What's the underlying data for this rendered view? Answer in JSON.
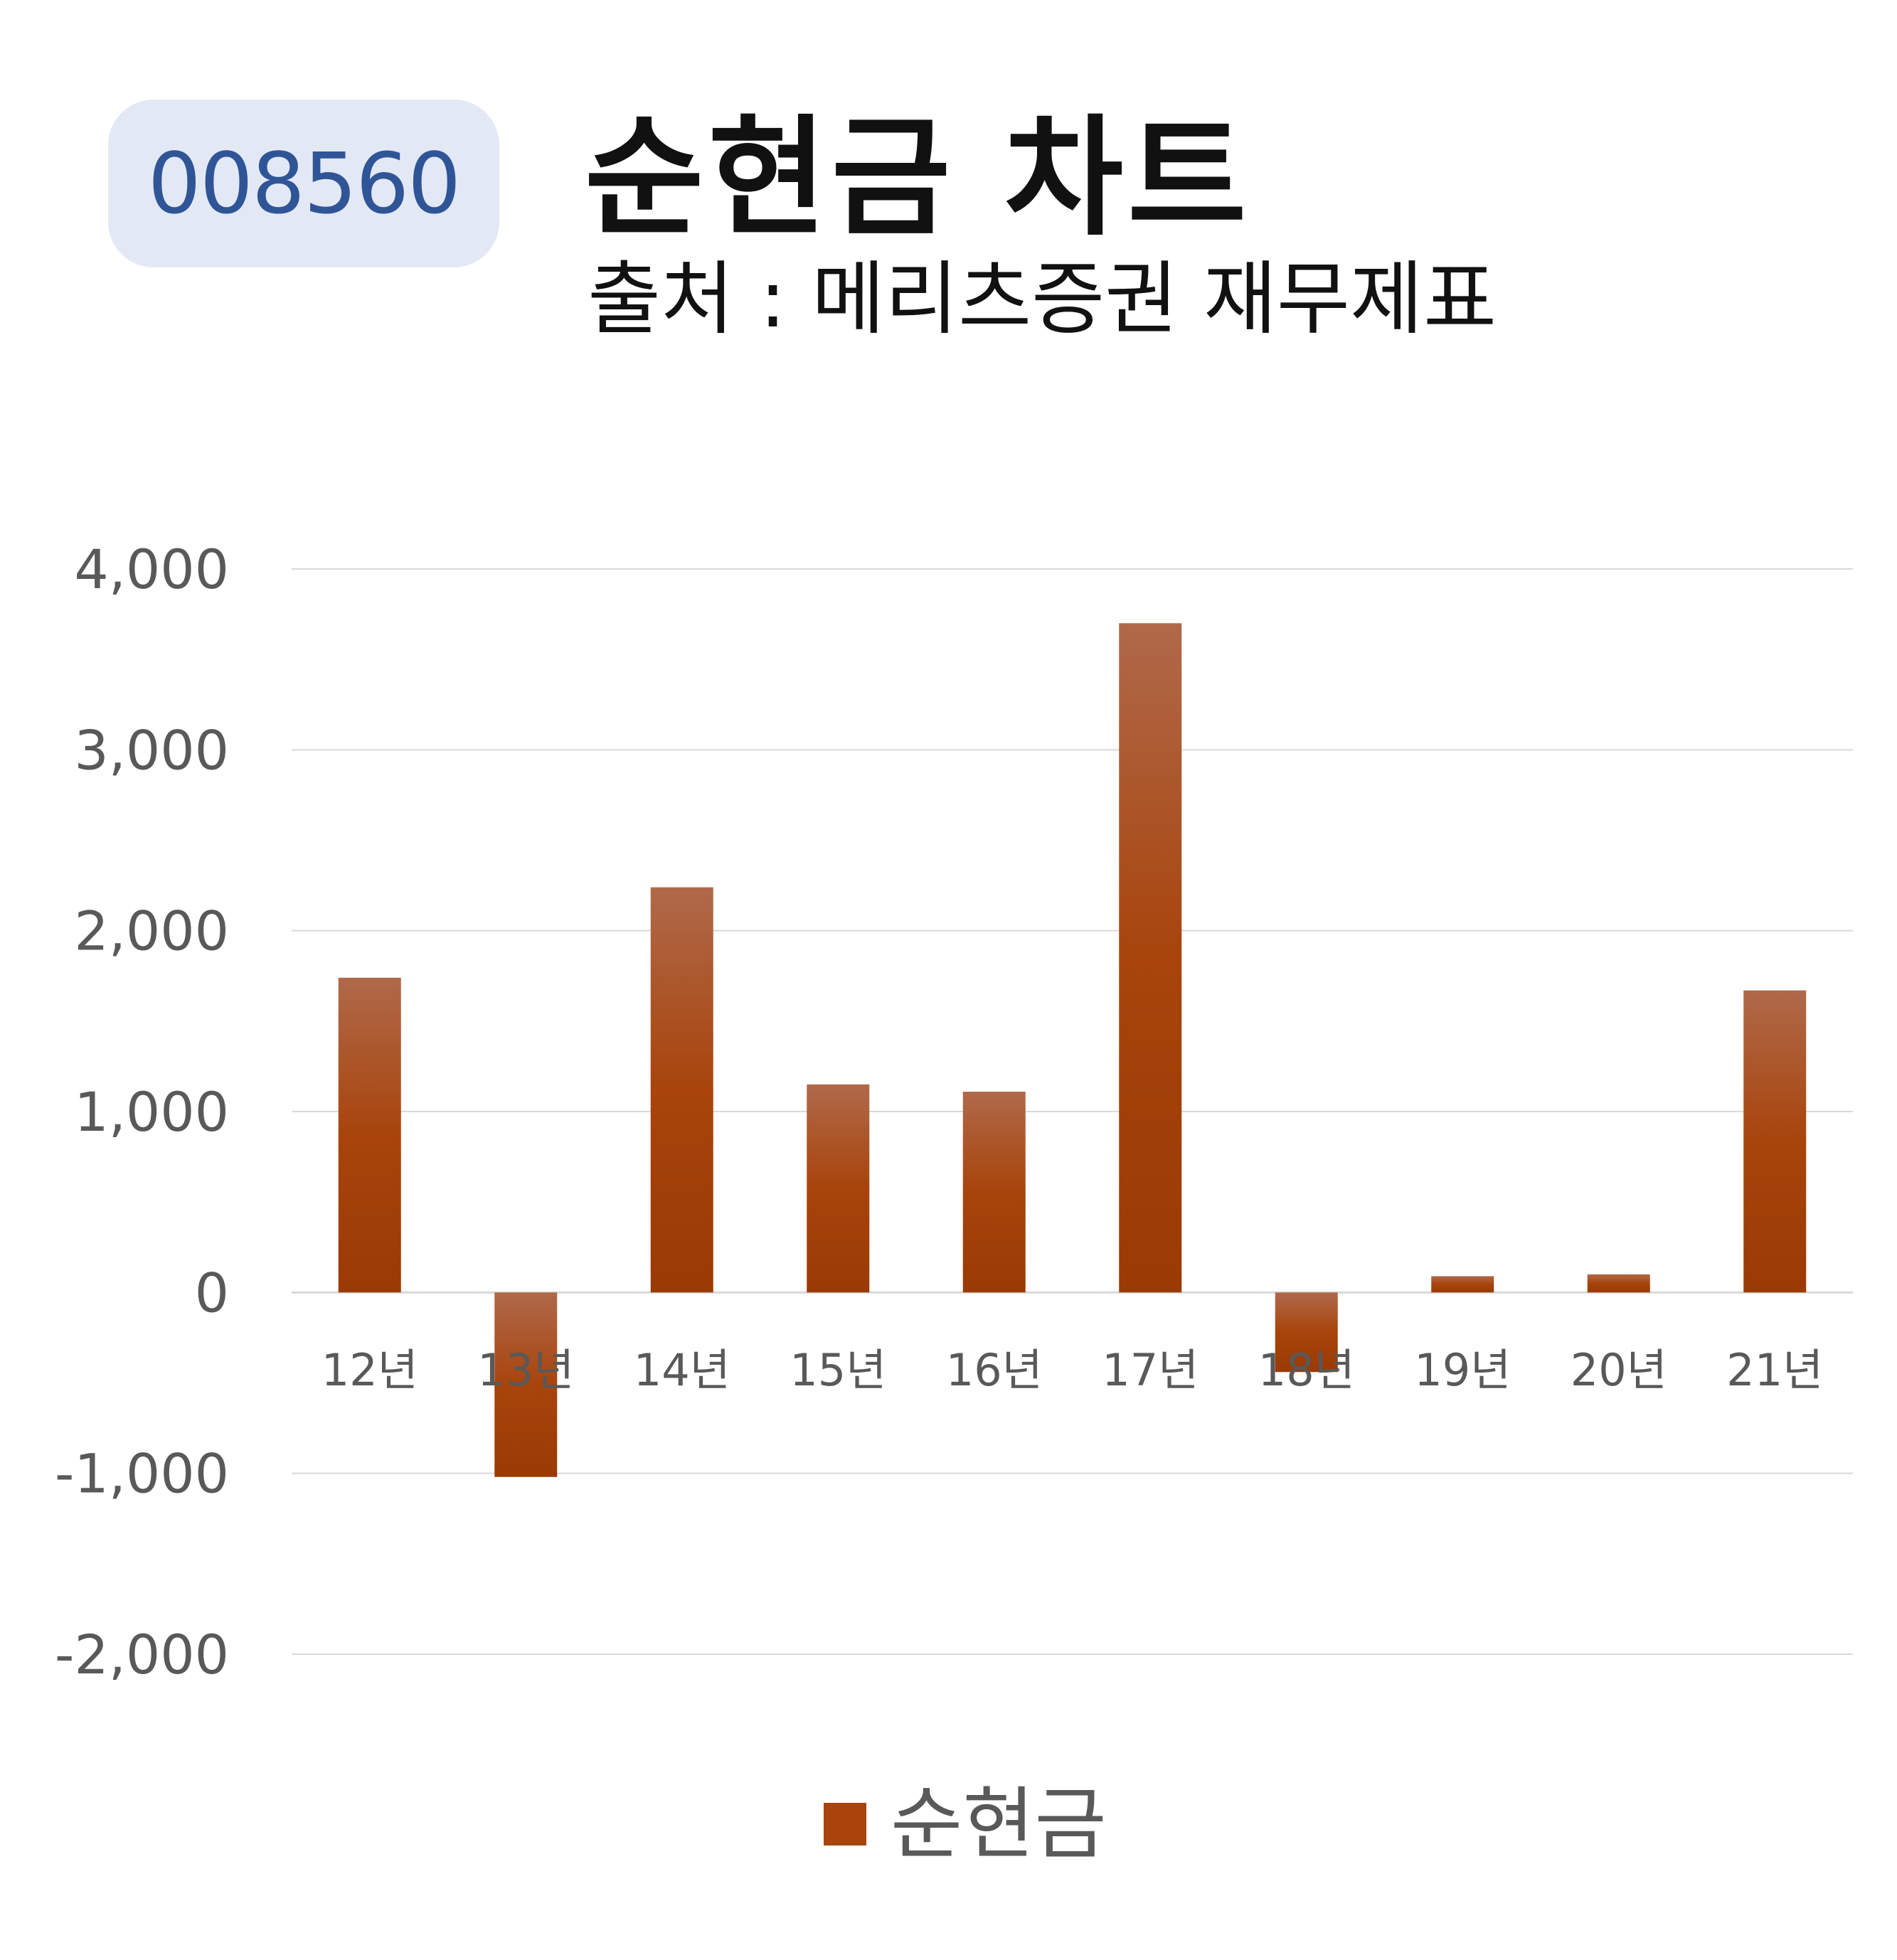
{
  "header": {
    "code": "008560",
    "title": "순현금 차트",
    "subtitle": "출처 : 메리츠증권 재무제표"
  },
  "colors": {
    "bar_top": "#b0694a",
    "bar_mid": "#a8440c",
    "bar_bottom": "#9a3a04",
    "grid": "#d9d9d9",
    "axis_text": "#595959",
    "badge_bg": "#e3e8f5",
    "badge_text": "#2f5597"
  },
  "chart_data": {
    "type": "bar",
    "categories": [
      "12년",
      "13년",
      "14년",
      "15년",
      "16년",
      "17년",
      "18년",
      "19년",
      "20년",
      "21년"
    ],
    "series": [
      {
        "name": "순현금",
        "values": [
          1740,
          -1020,
          2240,
          1150,
          1110,
          3700,
          -440,
          90,
          100,
          1670
        ]
      }
    ],
    "ylim": [
      -2000,
      4000
    ],
    "yticks": [
      4000,
      3000,
      2000,
      1000,
      0,
      -1000,
      -2000
    ],
    "ytick_labels": [
      "4,000",
      "3,000",
      "2,000",
      "1,000",
      "0",
      "-1,000",
      "-2,000"
    ],
    "grid": true,
    "legend_position": "bottom"
  }
}
